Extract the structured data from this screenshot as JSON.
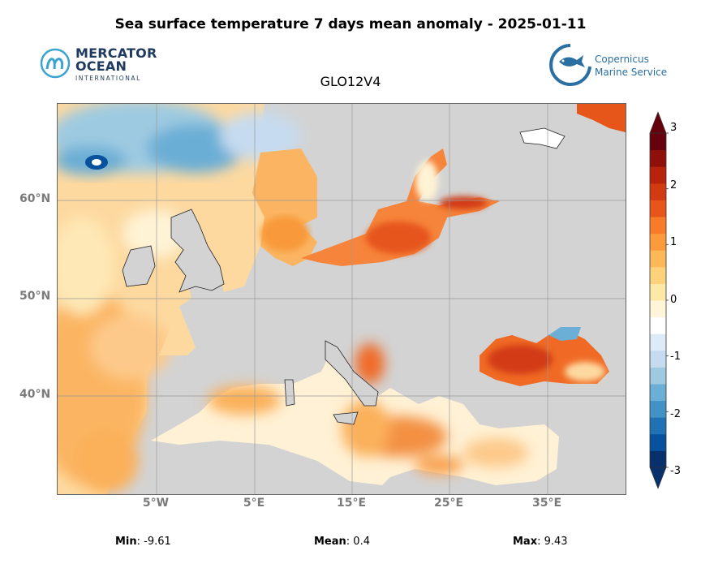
{
  "title": "Sea surface temperature 7 days mean anomaly - 2025-01-11",
  "model": "GLO12V4",
  "logos": {
    "mercator": {
      "line1": "MERCATOR",
      "line2": "OCEAN",
      "line3": "INTERNATIONAL",
      "brand_color": "#1f3a5f",
      "accent": "#3aa3d1"
    },
    "copernicus": {
      "line1": "Copernicus",
      "line2": "Marine Service",
      "brand_color": "#2a6fa2"
    }
  },
  "map": {
    "land_color": "#d3d3d3",
    "lat_ticks": [
      "60°N",
      "50°N",
      "40°N"
    ],
    "lon_ticks": [
      "5°W",
      "5°E",
      "15°E",
      "25°E",
      "35°E"
    ]
  },
  "colorbar": {
    "ticks": [
      "3",
      "2",
      "1",
      "0",
      "-1",
      "-2",
      "-3"
    ],
    "range": [
      -3,
      3
    ],
    "colors": [
      "#08306b",
      "#08519c",
      "#2171b5",
      "#4292c6",
      "#6baed6",
      "#9ecae1",
      "#c6dbef",
      "#deebf7",
      "#ffffff",
      "#fff5d9",
      "#fee8a8",
      "#fdd27a",
      "#fdb857",
      "#fd9a3c",
      "#f87b2a",
      "#e6551a",
      "#d23a12",
      "#b8230e",
      "#8f0f0a",
      "#67000d"
    ]
  },
  "stats": {
    "min_label": "Min",
    "min_value": ": -9.61",
    "mean_label": "Mean",
    "mean_value": ": 0.4",
    "max_label": "Max",
    "max_value": ": 9.43"
  }
}
